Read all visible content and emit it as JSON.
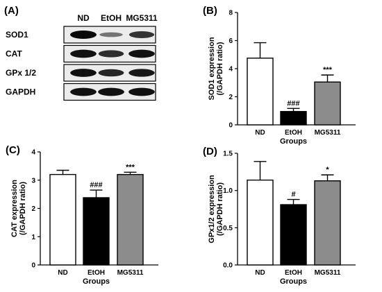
{
  "panel_a": {
    "label": "(A)",
    "columns": [
      "ND",
      "EtOH",
      "MG5311"
    ],
    "rows": [
      {
        "name": "SOD1",
        "intensity": [
          1.0,
          0.25,
          0.7
        ]
      },
      {
        "name": "CAT",
        "intensity": [
          0.95,
          0.75,
          0.95
        ]
      },
      {
        "name": "GPx 1/2",
        "intensity": [
          0.95,
          0.8,
          0.9
        ]
      },
      {
        "name": "GAPDH",
        "intensity": [
          0.95,
          0.95,
          0.95
        ]
      }
    ]
  },
  "colors": {
    "ND": "#ffffff",
    "EtOH": "#000000",
    "MG5311": "#8c8c8c"
  },
  "chart_data": [
    {
      "type": "bar",
      "label": "(B)",
      "categories": [
        "ND",
        "EtOH",
        "MG5311"
      ],
      "values": [
        4.75,
        0.95,
        3.05
      ],
      "errors": [
        1.1,
        0.22,
        0.5
      ],
      "significance": [
        "",
        "###",
        "***"
      ],
      "ylabel": [
        "SOD1 expression",
        "(/GAPDH ratio)"
      ],
      "xlabel": "Groups",
      "ylim": [
        0,
        8
      ],
      "yticks": [
        0,
        2,
        4,
        6,
        8
      ],
      "ytick_labels": [
        "0",
        "2",
        "4",
        "6",
        "8"
      ]
    },
    {
      "type": "bar",
      "label": "(C)",
      "categories": [
        "ND",
        "EtOH",
        "MG5311"
      ],
      "values": [
        3.2,
        2.38,
        3.2
      ],
      "errors": [
        0.15,
        0.27,
        0.08
      ],
      "significance": [
        "",
        "###",
        "***"
      ],
      "ylabel": [
        "CAT expression",
        "(/GAPDH ratio)"
      ],
      "xlabel": "Groups",
      "ylim": [
        0,
        4
      ],
      "yticks": [
        0,
        1,
        2,
        3,
        4
      ],
      "ytick_labels": [
        "0",
        "1",
        "2",
        "3",
        "4"
      ]
    },
    {
      "type": "bar",
      "label": "(D)",
      "categories": [
        "ND",
        "EtOH",
        "MG5311"
      ],
      "values": [
        1.14,
        0.81,
        1.13
      ],
      "errors": [
        0.25,
        0.07,
        0.08
      ],
      "significance": [
        "",
        "#",
        "*"
      ],
      "ylabel": [
        "GPx1/2 expression",
        "(/GAPDH ratio)"
      ],
      "xlabel": "Groups",
      "ylim": [
        0,
        1.5
      ],
      "yticks": [
        0,
        0.5,
        1.0,
        1.5
      ],
      "ytick_labels": [
        "0.0",
        "0.5",
        "1.0",
        "1.5"
      ]
    }
  ]
}
